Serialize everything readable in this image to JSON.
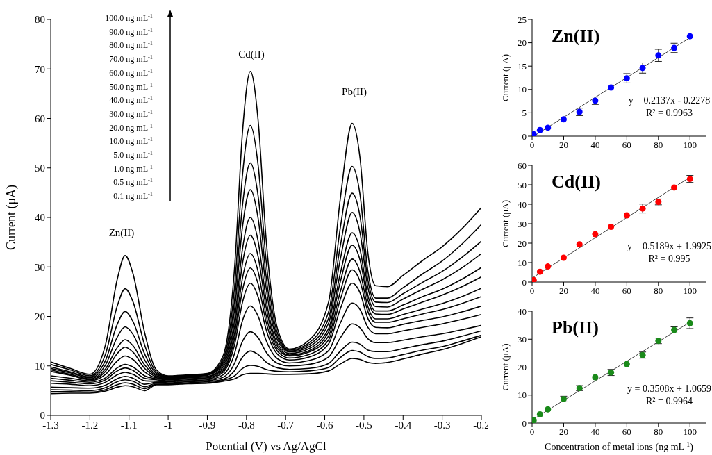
{
  "chart_data": [
    {
      "type": "line",
      "xlabel": "Potential (V) vs Ag/AgCl",
      "ylabel": "Current (μA)",
      "x": [
        -1.3,
        -1.25,
        -1.2,
        -1.16,
        -1.13,
        -1.11,
        -1.09,
        -1.06,
        -1.03,
        -1.0,
        -0.95,
        -0.9,
        -0.86,
        -0.83,
        -0.81,
        -0.79,
        -0.77,
        -0.75,
        -0.72,
        -0.69,
        -0.64,
        -0.59,
        -0.56,
        -0.53,
        -0.51,
        -0.49,
        -0.47,
        -0.44,
        -0.4,
        -0.35,
        -0.3,
        -0.25,
        -0.2
      ],
      "series": [
        {
          "color": "#000000",
          "values": [
            10.8,
            9.5,
            8.3,
            14.3,
            27.5,
            32.3,
            28.7,
            16.7,
            9.2,
            8.0,
            8.2,
            8.5,
            12.0,
            30.2,
            57.4,
            69.5,
            59.4,
            35.8,
            17.3,
            13.4,
            15.2,
            23.0,
            44.0,
            59,
            52.0,
            32.9,
            26.2,
            26.0,
            28.3,
            31.3,
            34.1,
            37.7,
            42
          ]
        },
        {
          "color": "#000000",
          "values": [
            10.3,
            9.2,
            8.0,
            12.4,
            22.1,
            25.6,
            23.0,
            14.2,
            8.8,
            7.9,
            8.1,
            8.4,
            11.4,
            26.3,
            48.7,
            58.6,
            50.4,
            31.4,
            16.4,
            13.2,
            14.7,
            21.0,
            38.1,
            50.3,
            44.6,
            29.2,
            23.7,
            23.7,
            25.8,
            28.6,
            31.2,
            34.6,
            38.6
          ]
        },
        {
          "color": "#000000",
          "values": [
            9.8,
            8.8,
            7.8,
            11.1,
            18.4,
            21.0,
            19.0,
            12.4,
            8.5,
            7.8,
            8.0,
            8.3,
            10.9,
            23.6,
            42.6,
            51.0,
            44.2,
            28.2,
            15.7,
            13.0,
            14.3,
            19.7,
            34.4,
            44.9,
            40.2,
            27.4,
            22.9,
            22.8,
            24.6,
            26.9,
            29.1,
            31.9,
            35.2
          ]
        },
        {
          "color": "#000000",
          "values": [
            9.5,
            8.6,
            7.6,
            10.2,
            15.8,
            17.9,
            16.4,
            11.2,
            8.2,
            7.7,
            7.9,
            8.2,
            10.5,
            21.6,
            38.2,
            45.6,
            39.7,
            25.9,
            15.1,
            12.8,
            13.9,
            18.7,
            31.7,
            41.0,
            36.9,
            25.9,
            22.0,
            21.9,
            23.5,
            25.5,
            27.4,
            29.8,
            32.7
          ]
        },
        {
          "color": "#000000",
          "values": [
            9.2,
            8.3,
            7.4,
            9.4,
            13.7,
            15.3,
            14.1,
            10.2,
            8.0,
            7.6,
            7.8,
            8.1,
            10.1,
            19.5,
            33.7,
            40.0,
            35.1,
            23.5,
            14.4,
            12.5,
            13.5,
            17.6,
            28.8,
            36.9,
            33.5,
            24.3,
            21.1,
            21.1,
            22.3,
            24.0,
            25.5,
            27.5,
            29.9
          ]
        },
        {
          "color": "#000000",
          "values": [
            8.9,
            8.1,
            7.2,
            8.9,
            12.5,
            13.8,
            12.8,
            9.5,
            7.8,
            7.5,
            7.7,
            7.9,
            9.7,
            18.1,
            30.8,
            36.4,
            32.0,
            21.9,
            13.9,
            12.2,
            13.1,
            16.9,
            27.1,
            34.4,
            31.4,
            23.3,
            20.5,
            20.4,
            21.5,
            22.9,
            24.3,
            26.0,
            28.0
          ]
        },
        {
          "color": "#000000",
          "values": [
            8.0,
            7.5,
            7.0,
            8.3,
            11.0,
            12.0,
            11.3,
            8.8,
            7.6,
            7.4,
            7.6,
            7.8,
            9.3,
            16.7,
            27.8,
            32.7,
            29.0,
            20.3,
            13.4,
            12.0,
            12.8,
            16.1,
            25.1,
            31.6,
            29.0,
            22.0,
            19.5,
            19.5,
            20.4,
            21.5,
            22.6,
            24.0,
            25.7
          ]
        },
        {
          "color": "#000000",
          "values": [
            7.5,
            7.1,
            6.7,
            7.6,
            9.6,
            10.3,
            9.8,
            8.0,
            7.4,
            7.2,
            7.4,
            7.6,
            9.0,
            15.6,
            25.4,
            29.8,
            26.5,
            18.9,
            12.9,
            11.6,
            12.3,
            15.3,
            23.5,
            29.4,
            27.1,
            21.0,
            18.8,
            18.8,
            19.5,
            20.5,
            21.4,
            22.6,
            24.0
          ]
        },
        {
          "color": "#000000",
          "values": [
            7.0,
            6.7,
            6.4,
            7.2,
            9.0,
            9.6,
            9.1,
            7.5,
            7.2,
            7.0,
            7.2,
            7.4,
            8.7,
            14.4,
            22.9,
            26.7,
            23.9,
            17.4,
            12.3,
            11.2,
            11.8,
            14.5,
            21.6,
            26.7,
            24.8,
            19.6,
            17.8,
            17.7,
            18.4,
            19.2,
            19.9,
            20.9,
            22.1
          ]
        },
        {
          "color": "#000000",
          "values": [
            6.5,
            6.3,
            6.0,
            6.7,
            8.2,
            8.7,
            8.3,
            7.0,
            6.9,
            6.8,
            7.0,
            7.2,
            8.2,
            12.6,
            19.2,
            22.1,
            20.0,
            15.2,
            11.4,
            10.6,
            11.1,
            13.1,
            18.7,
            22.7,
            21.4,
            17.8,
            16.5,
            16.5,
            17.1,
            17.8,
            18.5,
            19.4,
            20.4
          ]
        },
        {
          "color": "#000000",
          "values": [
            5.7,
            5.6,
            5.5,
            6.1,
            7.4,
            7.9,
            7.5,
            6.3,
            6.7,
            6.6,
            6.8,
            7.0,
            7.7,
            10.6,
            15.0,
            16.9,
            15.7,
            12.8,
            10.5,
            10.0,
            10.3,
            11.8,
            15.7,
            18.5,
            17.7,
            15.5,
            14.7,
            14.7,
            15.2,
            15.9,
            16.5,
            17.3,
            18.2
          ]
        },
        {
          "color": "#000000",
          "values": [
            5.2,
            5.1,
            5.0,
            5.6,
            6.8,
            7.2,
            6.9,
            5.8,
            6.5,
            6.4,
            6.6,
            6.8,
            7.3,
            9.1,
            11.8,
            13.0,
            12.3,
            10.8,
            9.6,
            9.3,
            9.5,
            10.5,
            13.0,
            14.8,
            14.4,
            13.2,
            12.9,
            12.9,
            13.5,
            14.3,
            15.0,
            16.0,
            17.1
          ]
        },
        {
          "color": "#000000",
          "values": [
            4.8,
            4.8,
            4.7,
            5.2,
            6.2,
            6.6,
            6.3,
            5.4,
            6.3,
            6.3,
            6.5,
            6.6,
            7.1,
            8.0,
            9.5,
            10.1,
            9.9,
            9.3,
            8.9,
            8.8,
            9.0,
            9.7,
            11.7,
            13.1,
            12.8,
            11.9,
            11.5,
            11.6,
            12.3,
            13.2,
            13.9,
            15.0,
            16.2
          ]
        },
        {
          "color": "#000000",
          "values": [
            4.4,
            4.5,
            4.5,
            4.9,
            5.7,
            6.0,
            5.8,
            5.0,
            6.2,
            6.2,
            6.4,
            6.5,
            6.9,
            7.4,
            8.2,
            8.5,
            8.5,
            8.4,
            8.3,
            8.3,
            8.4,
            9.0,
            10.4,
            11.5,
            11.3,
            10.7,
            10.5,
            10.7,
            11.4,
            12.4,
            13.3,
            14.5,
            15.9
          ]
        }
      ],
      "xlim": [
        -1.3,
        -0.2
      ],
      "xticks": [
        -1.3,
        -1.2,
        -1.1,
        -1,
        -0.9,
        -0.8,
        -0.7,
        -0.6,
        -0.5,
        -0.4,
        -0.3,
        -0.2
      ],
      "ylim": [
        0,
        80
      ],
      "yticks": [
        0,
        10,
        20,
        30,
        40,
        50,
        60,
        70,
        80
      ],
      "annotations": [
        "Zn(II)",
        "Cd(II)",
        "Pb(II)",
        "100.0 ng mL$^{-1}$",
        "90.0 ng mL$^{-1}$",
        "80.0 ng mL$^{-1}$",
        "70.0 ng mL$^{-1}$",
        "60.0 ng mL$^{-1}$",
        "50.0 ng mL$^{-1}$",
        "40.0 ng mL$^{-1}$",
        "30.0 ng mL$^{-1}$",
        "20.0 ng mL$^{-1}$",
        "10.0 ng mL$^{-1}$",
        "5.0 ng mL$^{-1}$",
        "1.0 ng mL$^{-1}$",
        "0.5 ng mL$^{-1}$",
        "0.1 ng mL$^{-1}$"
      ]
    },
    {
      "type": "scatter",
      "title": "Zn(II)",
      "ylabel": "Current (μA)",
      "series": [
        {
          "marker": "circle",
          "color": "#0000ff",
          "x": [
            1,
            5,
            10,
            20,
            30,
            40,
            50,
            60,
            70,
            80,
            90,
            100
          ],
          "values": [
            0.4,
            1.3,
            1.8,
            3.6,
            5.2,
            7.6,
            10.4,
            12.4,
            14.6,
            17.3,
            18.9,
            21.4
          ],
          "errors": [
            null,
            null,
            null,
            null,
            0.8,
            0.8,
            null,
            1.0,
            1.1,
            1.3,
            1.0,
            null
          ]
        },
        {
          "type": "line",
          "color": "#404040",
          "x": [
            2,
            100
          ],
          "values": [
            0.2,
            21.1
          ]
        }
      ],
      "xlim": [
        0,
        110
      ],
      "xticks": [
        0,
        20,
        40,
        60,
        80,
        100
      ],
      "ylim": [
        0,
        25
      ],
      "yticks": [
        0,
        5,
        10,
        15,
        20,
        25
      ],
      "annotations": [
        "y = 0.2137x - 0.2278",
        "R² = 0.9963"
      ]
    },
    {
      "type": "scatter",
      "title": "Cd(II)",
      "ylabel": "Current (μA)",
      "series": [
        {
          "marker": "circle",
          "color": "#ff0000",
          "x": [
            1,
            5,
            10,
            20,
            30,
            40,
            50,
            60,
            70,
            80,
            90,
            100
          ],
          "values": [
            1.0,
            5.3,
            8.0,
            12.5,
            19.4,
            24.6,
            28.4,
            34.3,
            37.8,
            41.2,
            48.6,
            53.0
          ],
          "errors": [
            null,
            null,
            null,
            null,
            null,
            null,
            null,
            null,
            2.3,
            1.5,
            null,
            1.8
          ]
        },
        {
          "type": "line",
          "color": "#404040",
          "x": [
            0,
            100
          ],
          "values": [
            2.0,
            53.9
          ]
        }
      ],
      "xlim": [
        0,
        110
      ],
      "xticks": [
        0,
        20,
        40,
        60,
        80,
        100
      ],
      "ylim": [
        0,
        60
      ],
      "yticks": [
        0,
        10,
        20,
        30,
        40,
        50,
        60
      ],
      "annotations": [
        "y = 0.5189x + 1.9925",
        "R² = 0.995"
      ]
    },
    {
      "type": "scatter",
      "title": "Pb(II)",
      "xlabel": "Concentration of metal ions (ng mL$^{-1}$)",
      "ylabel": "Current (μA)",
      "series": [
        {
          "marker": "circle",
          "color": "#1a8a1a",
          "x": [
            1,
            5,
            10,
            20,
            30,
            40,
            50,
            60,
            70,
            80,
            90,
            100
          ],
          "values": [
            1.0,
            3.1,
            4.9,
            8.6,
            12.5,
            16.4,
            18.1,
            21.1,
            24.3,
            29.4,
            33.3,
            35.7
          ],
          "errors": [
            null,
            null,
            null,
            1.0,
            0.9,
            null,
            1.1,
            null,
            1.1,
            1.0,
            1.1,
            1.9
          ]
        },
        {
          "type": "line",
          "color": "#404040",
          "x": [
            0,
            100
          ],
          "values": [
            1.1,
            36.1
          ]
        }
      ],
      "xlim": [
        0,
        110
      ],
      "xticks": [
        0,
        20,
        40,
        60,
        80,
        100
      ],
      "ylim": [
        0,
        40
      ],
      "yticks": [
        0,
        10,
        20,
        30,
        40
      ],
      "annotations": [
        "y = 0.3508x + 1.0659",
        "R² = 0.9964"
      ]
    }
  ]
}
